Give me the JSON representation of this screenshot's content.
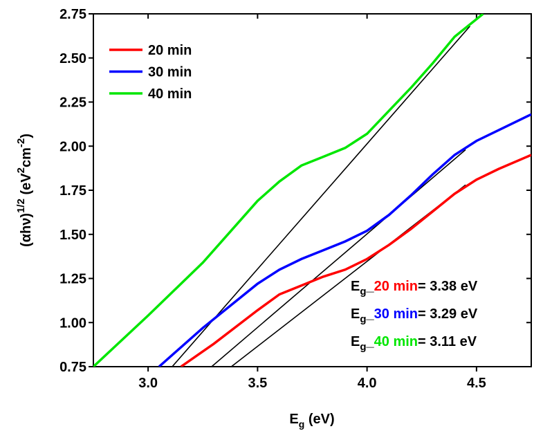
{
  "chart_data": {
    "type": "line",
    "x_label": {
      "symbol": "E",
      "subscript": "g",
      "unit": " (eV)"
    },
    "y_label": [
      {
        "text": "(αhν)"
      },
      {
        "text": "1/2",
        "sup": true
      },
      {
        "text": " (eV"
      },
      {
        "text": "2",
        "sup": true
      },
      {
        "text": "cm"
      },
      {
        "text": "-2",
        "sup": true
      },
      {
        "text": ")"
      }
    ],
    "xlim": [
      2.75,
      4.75
    ],
    "ylim": [
      0.75,
      2.75
    ],
    "xticks": [
      {
        "value": 3,
        "label": "3.0"
      },
      3.5,
      {
        "value": 4,
        "label": "4.0"
      },
      4.5
    ],
    "yticks": [
      0.75,
      {
        "value": 1,
        "label": "1.00"
      },
      1.25,
      {
        "value": 1.5,
        "label": "1.50"
      },
      1.75,
      {
        "value": 2,
        "label": "2.00"
      },
      2.25,
      {
        "value": 2.5,
        "label": "2.50"
      },
      2.75
    ],
    "legend": "upper left",
    "series": [
      {
        "name": "20 min",
        "color": "#ff0000",
        "x": [
          3.15,
          3.3,
          3.5,
          3.6,
          3.7,
          3.8,
          3.9,
          4.0,
          4.1,
          4.2,
          4.3,
          4.4,
          4.5,
          4.6,
          4.75
        ],
        "values": [
          0.75,
          0.88,
          1.07,
          1.16,
          1.21,
          1.26,
          1.3,
          1.36,
          1.44,
          1.53,
          1.63,
          1.73,
          1.81,
          1.87,
          1.95
        ]
      },
      {
        "name": "30 min",
        "color": "#0000ff",
        "x": [
          3.05,
          3.25,
          3.5,
          3.6,
          3.7,
          3.8,
          3.9,
          4.0,
          4.1,
          4.2,
          4.3,
          4.4,
          4.5,
          4.6,
          4.75
        ],
        "values": [
          0.75,
          0.97,
          1.22,
          1.3,
          1.36,
          1.41,
          1.46,
          1.52,
          1.61,
          1.72,
          1.84,
          1.95,
          2.03,
          2.09,
          2.18
        ]
      },
      {
        "name": "40 min",
        "color": "#00e600",
        "x": [
          2.75,
          3.0,
          3.25,
          3.5,
          3.6,
          3.7,
          3.8,
          3.9,
          4.0,
          4.1,
          4.2,
          4.3,
          4.4,
          4.53
        ],
        "values": [
          0.75,
          1.04,
          1.34,
          1.69,
          1.8,
          1.89,
          1.94,
          1.99,
          2.07,
          2.2,
          2.33,
          2.47,
          2.62,
          2.75
        ]
      }
    ],
    "fit_lines": [
      {
        "color": "#000000",
        "x": [
          3.38,
          4.45
        ],
        "values": [
          0.75,
          1.78
        ]
      },
      {
        "color": "#000000",
        "x": [
          3.29,
          4.45
        ],
        "values": [
          0.75,
          1.98
        ]
      },
      {
        "color": "#000000",
        "x": [
          3.11,
          4.47
        ],
        "values": [
          0.75,
          2.68
        ]
      }
    ],
    "annotations": [
      {
        "symbol": "E",
        "subscript": "g",
        "separator": "_",
        "text": "= 3.38 eV"
      },
      {
        "symbol": "E",
        "subscript": "g",
        "separator": "_",
        "text": "= 3.29 eV"
      },
      {
        "symbol": "E",
        "subscript": "g",
        "separator": "_",
        "text": "= 3.11 eV"
      }
    ]
  }
}
